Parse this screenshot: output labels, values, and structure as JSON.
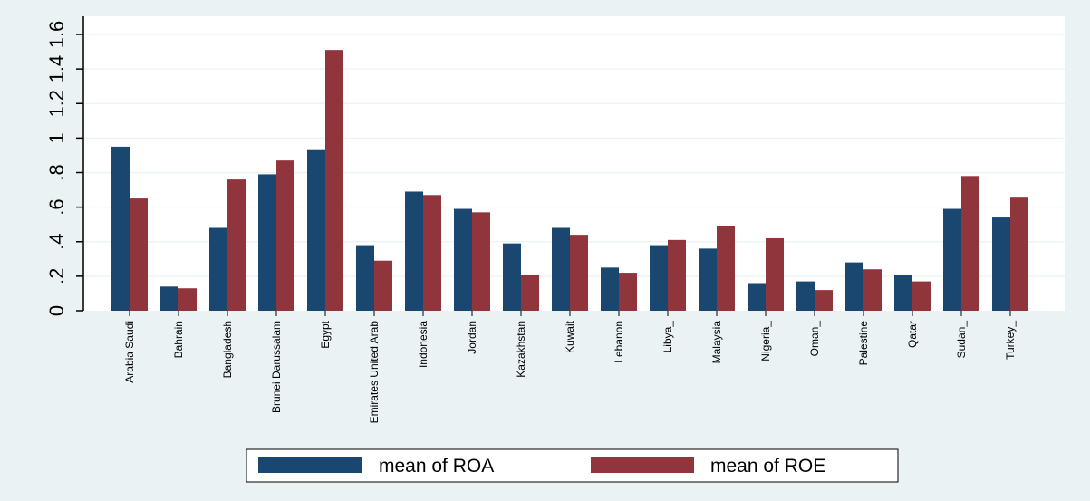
{
  "chart_data": {
    "type": "bar",
    "title": "",
    "xlabel": "",
    "ylabel": "",
    "ylim": [
      0,
      1.6
    ],
    "yticks": [
      0,
      0.2,
      0.4,
      0.6,
      0.8,
      1,
      1.2,
      1.4,
      1.6
    ],
    "ytick_labels": [
      "0",
      ".2",
      ".4",
      ".6",
      ".8",
      "1",
      "1.2",
      "1.4",
      "1.6"
    ],
    "grid": true,
    "legend_position": "bottom",
    "categories": [
      "Arabia Saudi",
      "Bahrain",
      "Bangladesh",
      "Brunei Darussalam",
      "Egypt",
      "Emirates United Arab",
      "Indonesia",
      "Jordan",
      "Kazakhstan",
      "Kuwait",
      "Lebanon",
      "Libya_",
      "Malaysia",
      "Nigeria_",
      "Oman_",
      "Palestine",
      "Qatar",
      "Sudan_",
      "Turkey_"
    ],
    "series": [
      {
        "name": "mean of ROA",
        "color": "#1a476f",
        "values": [
          0.95,
          0.14,
          0.48,
          0.79,
          0.93,
          0.38,
          0.69,
          0.59,
          0.39,
          0.48,
          0.25,
          0.38,
          0.36,
          0.16,
          0.17,
          0.28,
          0.21,
          0.59,
          0.54
        ]
      },
      {
        "name": "mean of ROE",
        "color": "#90353b",
        "values": [
          0.65,
          0.13,
          0.76,
          0.87,
          1.51,
          0.29,
          0.67,
          0.57,
          0.21,
          0.44,
          0.22,
          0.41,
          0.49,
          0.42,
          0.12,
          0.24,
          0.17,
          0.78,
          0.66
        ]
      }
    ]
  }
}
